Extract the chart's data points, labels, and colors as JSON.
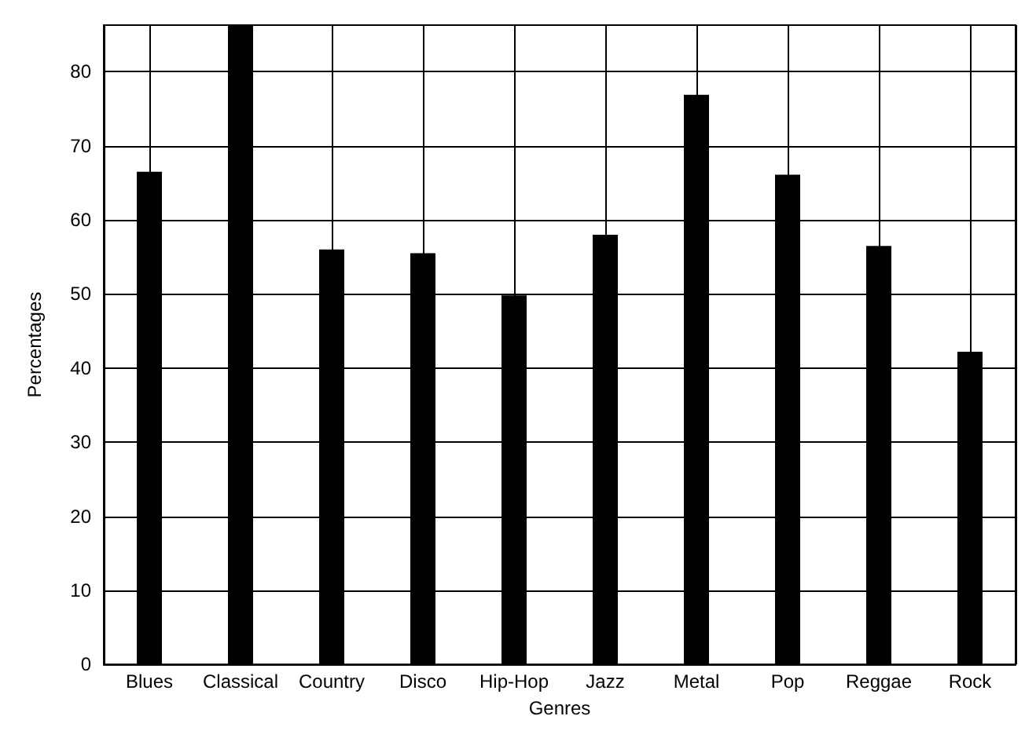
{
  "chart_data": {
    "type": "bar",
    "xlabel": "Genres",
    "ylabel": "Percentages",
    "categories": [
      "Blues",
      "Classical",
      "Country",
      "Disco",
      "Hip-Hop",
      "Jazz",
      "Metal",
      "Pop",
      "Reggae",
      "Rock"
    ],
    "values": [
      66.5,
      86.3,
      56.0,
      55.5,
      49.8,
      58.0,
      76.9,
      66.1,
      56.5,
      42.2
    ],
    "color": "#000000",
    "ylim": [
      0,
      86.3
    ],
    "yticks": [
      0,
      10,
      20,
      30,
      40,
      50,
      60,
      70,
      80
    ],
    "grid": true
  }
}
